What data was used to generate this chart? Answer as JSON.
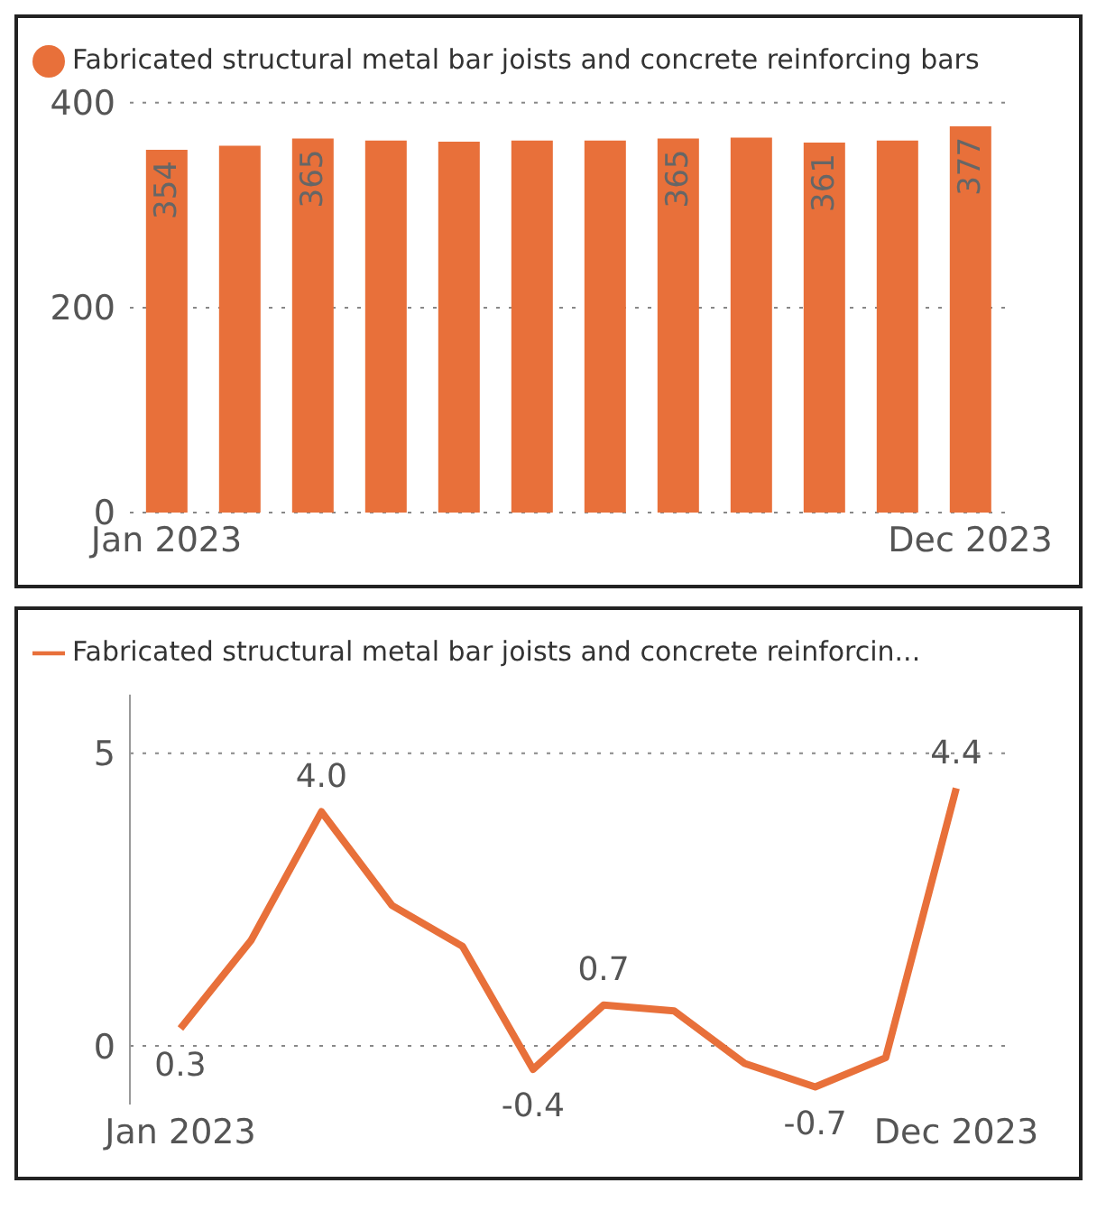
{
  "chart_data": [
    {
      "type": "bar",
      "categories": [
        "Jan 2023",
        null,
        null,
        null,
        null,
        null,
        null,
        null,
        null,
        null,
        null,
        "Dec 2023"
      ],
      "series": [
        {
          "name": "Fabricated structural metal bar joists and concrete reinforcing bars",
          "color": "#e8703a",
          "values": [
            354,
            358,
            365,
            363,
            362,
            363,
            363,
            365,
            366,
            361,
            363,
            377
          ],
          "value_labels": [
            "354",
            null,
            "365",
            null,
            null,
            null,
            null,
            "365",
            null,
            "361",
            null,
            "377"
          ]
        }
      ],
      "ylim": [
        0,
        400
      ],
      "yticks": [
        0,
        200,
        400
      ],
      "grid": "y",
      "legend": "top left"
    },
    {
      "type": "line",
      "categories": [
        "Jan 2023",
        null,
        null,
        null,
        null,
        null,
        null,
        null,
        null,
        null,
        null,
        "Dec 2023"
      ],
      "series": [
        {
          "name": "Fabricated structural metal bar joists and concrete reinforcin...",
          "color": "#e8703a",
          "values": [
            0.3,
            1.8,
            4.0,
            2.4,
            1.7,
            -0.4,
            0.7,
            0.6,
            -0.3,
            -0.7,
            -0.2,
            4.4
          ],
          "value_labels": [
            "0.3",
            null,
            "4.0",
            null,
            null,
            "-0.4",
            "0.7",
            null,
            null,
            "-0.7",
            null,
            "4.4"
          ]
        }
      ],
      "ylim": [
        -1,
        6
      ],
      "yticks": [
        0,
        5
      ],
      "grid": "y",
      "legend": "top left",
      "marker": "none"
    }
  ]
}
